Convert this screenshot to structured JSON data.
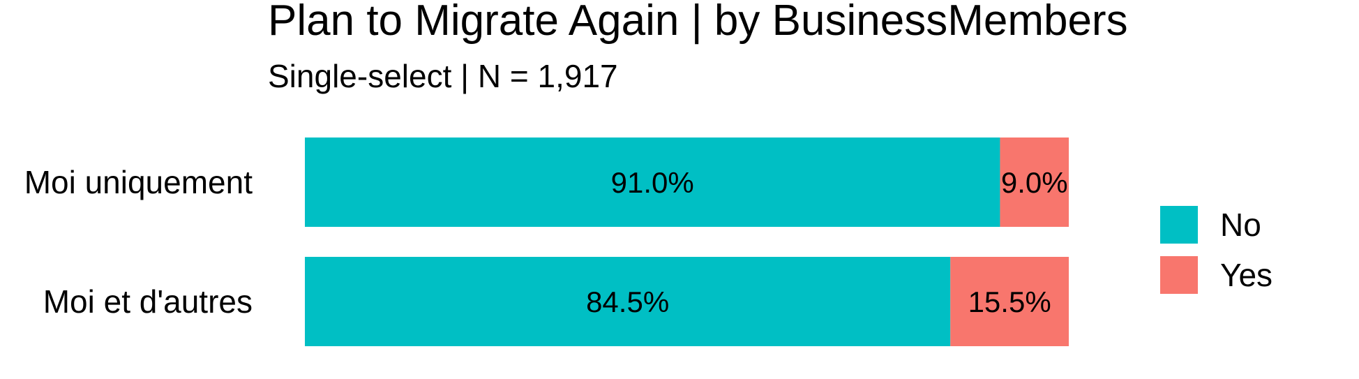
{
  "chart_data": {
    "type": "bar",
    "orientation": "horizontal",
    "stacked": true,
    "percent": true,
    "title": "Plan to Migrate Again | by BusinessMembers",
    "subtitle": "Single-select | N = 1,917",
    "categories": [
      "Moi uniquement",
      "Moi et d'autres"
    ],
    "series": [
      {
        "name": "No",
        "color": "#00BFC4",
        "values": [
          91.0,
          84.5
        ],
        "labels": [
          "91.0%",
          "84.5%"
        ]
      },
      {
        "name": "Yes",
        "color": "#F8766D",
        "values": [
          9.0,
          15.5
        ],
        "labels": [
          "9.0%",
          "15.5%"
        ]
      }
    ],
    "xlim": [
      0,
      100
    ],
    "grid": false,
    "legend_position": "right"
  }
}
